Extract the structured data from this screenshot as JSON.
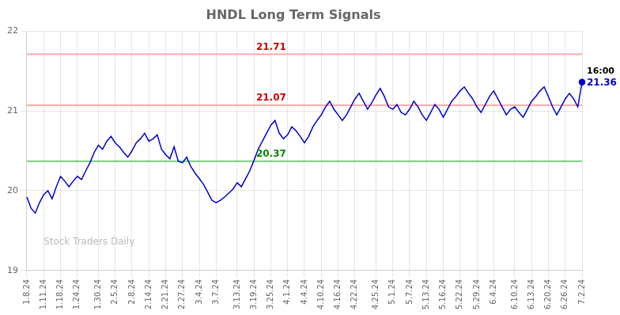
{
  "chart_data": {
    "type": "line",
    "title": "HNDL Long Term Signals",
    "categories": [
      "1.8.24",
      null,
      null,
      null,
      "1.11.24",
      null,
      null,
      null,
      "1.18.24",
      null,
      null,
      null,
      "1.24.24",
      null,
      null,
      null,
      null,
      "1.30.24",
      null,
      null,
      null,
      "2.5.24",
      null,
      null,
      null,
      "2.8.24",
      null,
      null,
      null,
      "2.14.24",
      null,
      null,
      null,
      "2.21.24",
      null,
      null,
      null,
      "2.27.24",
      null,
      null,
      null,
      "3.4.24",
      null,
      null,
      null,
      "3.7.24",
      null,
      null,
      null,
      null,
      "3.13.24",
      null,
      null,
      null,
      "3.19.24",
      null,
      null,
      null,
      "3.25.24",
      null,
      null,
      null,
      "4.1.24",
      null,
      null,
      null,
      "4.4.24",
      null,
      null,
      null,
      "4.10.24",
      null,
      null,
      null,
      "4.16.24",
      null,
      null,
      null,
      "4.22.24",
      null,
      null,
      null,
      null,
      "4.25.24",
      null,
      null,
      null,
      "5.1.24",
      null,
      null,
      null,
      "5.7.24",
      null,
      null,
      null,
      "5.13.24",
      null,
      null,
      null,
      "5.16.24",
      null,
      null,
      null,
      "5.22.24",
      null,
      null,
      null,
      "5.29.24",
      null,
      null,
      null,
      "6.4.24",
      null,
      null,
      null,
      null,
      "6.10.24",
      null,
      null,
      null,
      "6.13.24",
      null,
      null,
      null,
      "6.20.24",
      null,
      null,
      null,
      "6.26.24",
      null,
      null,
      null,
      "7.2.24"
    ],
    "series": [
      {
        "color": "#0000cc",
        "values": [
          19.92,
          19.78,
          19.72,
          19.85,
          19.95,
          20.0,
          19.9,
          20.05,
          20.18,
          20.12,
          20.05,
          20.12,
          20.18,
          20.14,
          20.25,
          20.35,
          20.48,
          20.57,
          20.52,
          20.62,
          20.68,
          20.6,
          20.55,
          20.48,
          20.42,
          20.5,
          20.6,
          20.65,
          20.72,
          20.62,
          20.65,
          20.7,
          20.52,
          20.45,
          20.4,
          20.55,
          20.37,
          20.35,
          20.42,
          20.3,
          20.22,
          20.15,
          20.08,
          19.98,
          19.88,
          19.85,
          19.88,
          19.92,
          19.97,
          20.02,
          20.1,
          20.05,
          20.15,
          20.25,
          20.38,
          20.52,
          20.62,
          20.72,
          20.82,
          20.88,
          20.72,
          20.65,
          20.7,
          20.8,
          20.75,
          20.68,
          20.6,
          20.68,
          20.8,
          20.88,
          20.95,
          21.05,
          21.12,
          21.02,
          20.95,
          20.88,
          20.95,
          21.05,
          21.15,
          21.22,
          21.12,
          21.02,
          21.1,
          21.2,
          21.28,
          21.18,
          21.05,
          21.02,
          21.08,
          20.98,
          20.95,
          21.02,
          21.12,
          21.05,
          20.95,
          20.88,
          20.98,
          21.08,
          21.02,
          20.92,
          21.02,
          21.12,
          21.18,
          21.25,
          21.3,
          21.22,
          21.15,
          21.05,
          20.98,
          21.08,
          21.18,
          21.25,
          21.15,
          21.05,
          20.95,
          21.02,
          21.05,
          20.98,
          20.92,
          21.02,
          21.12,
          21.18,
          21.25,
          21.3,
          21.18,
          21.05,
          20.95,
          21.05,
          21.15,
          21.22,
          21.15,
          21.05,
          21.36
        ]
      }
    ],
    "annotations": [
      {
        "text": "21.71",
        "y": 21.71,
        "color": "#cc0000",
        "line_color": "#ffaaaa"
      },
      {
        "text": "21.07",
        "y": 21.07,
        "color": "#cc0000",
        "line_color": "#ffaaaa"
      },
      {
        "text": "20.37",
        "y": 20.37,
        "color": "#008800",
        "line_color": "#77cc77"
      }
    ],
    "end_label": {
      "text": "16:00",
      "color": "#000000"
    },
    "end_value": {
      "text": "21.36",
      "color": "#0000cc"
    },
    "watermark": {
      "text": "Stock Traders Daily",
      "color": "#bbbbbb"
    },
    "ylim": [
      19,
      22
    ],
    "yticks": [
      19,
      20,
      21,
      22
    ],
    "grid": true
  }
}
